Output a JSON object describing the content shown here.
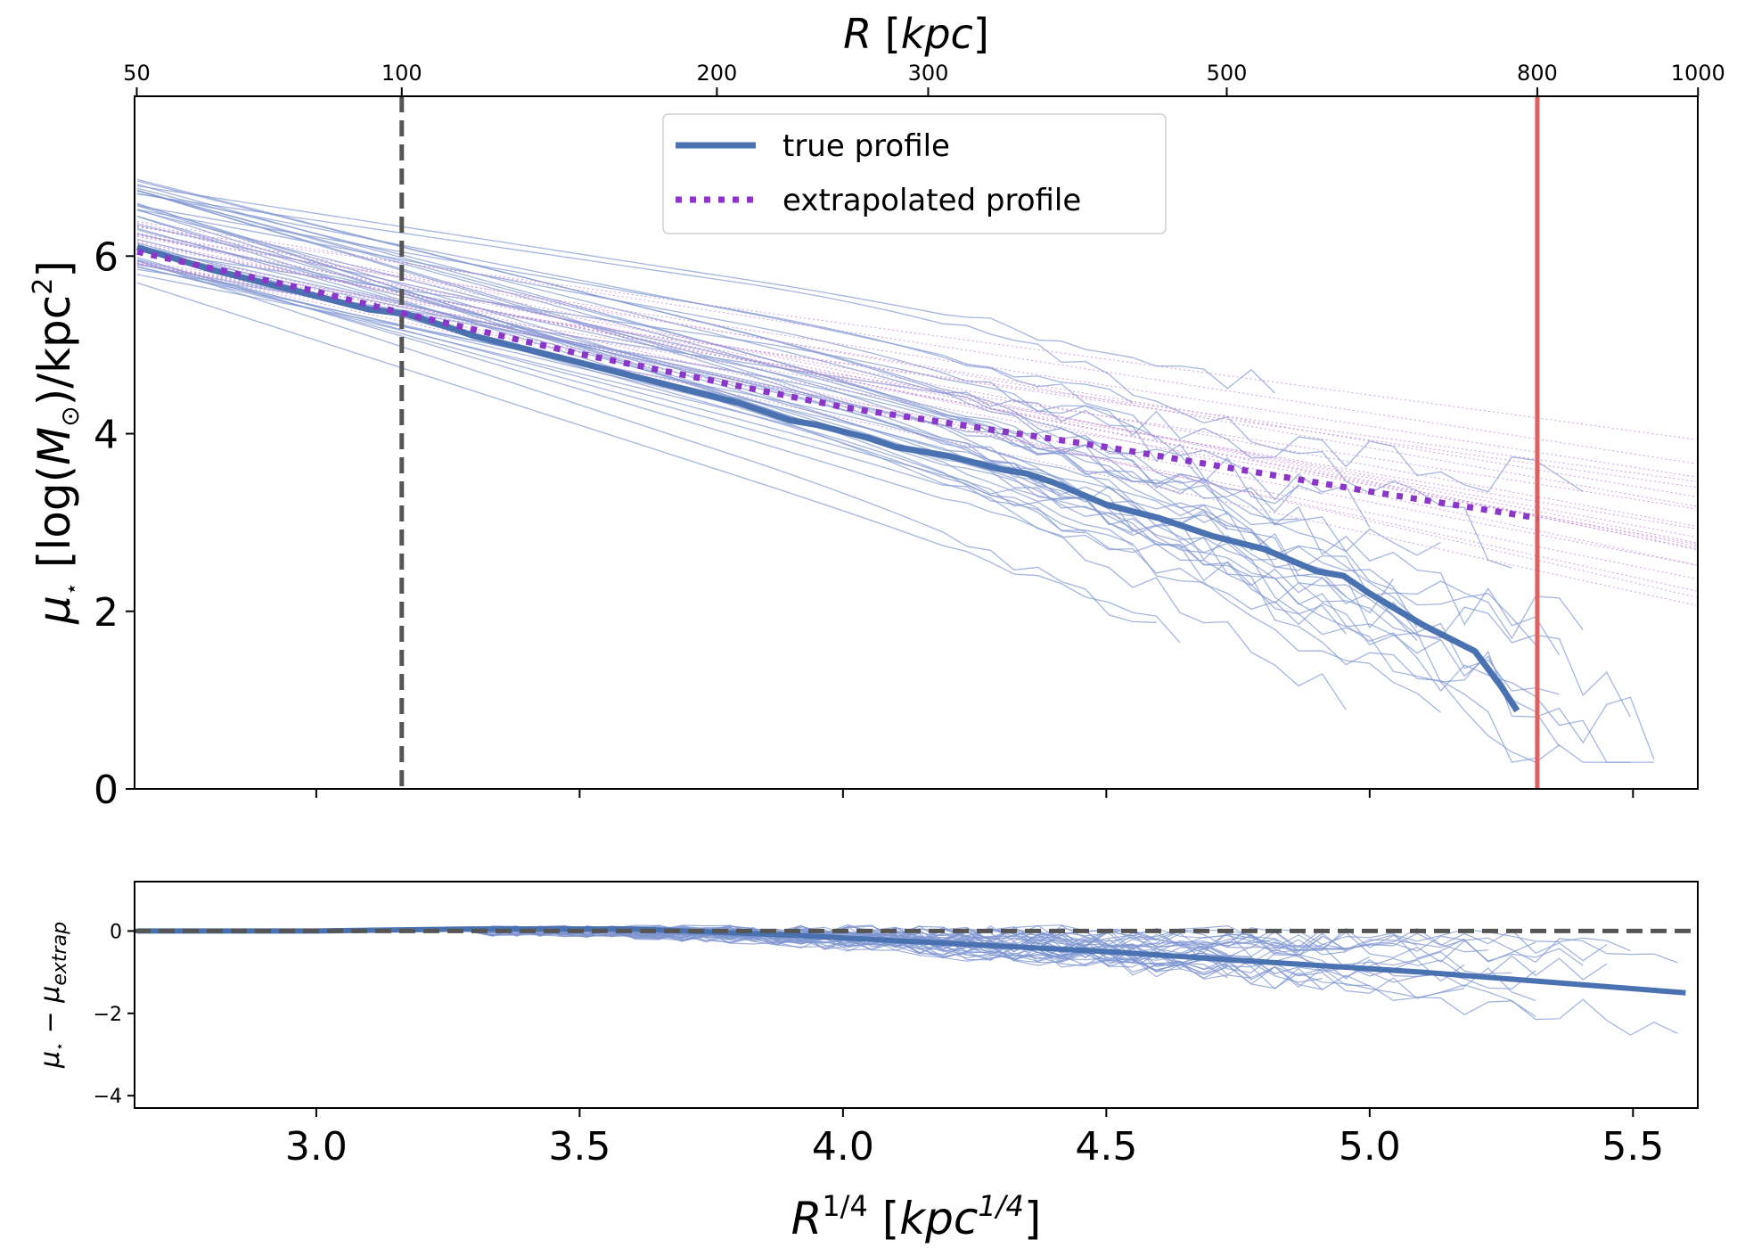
{
  "chart_data": [
    {
      "panel": "main",
      "type": "line",
      "xlabel": "R^{1/4} [kpc^{1/4}]",
      "xlabel_parts": {
        "base": "R",
        "exp": "1/4",
        "open": " [",
        "unit": "kpc",
        "unit_exp": "1/4",
        "close": "]"
      },
      "top_xlabel": "R [kpc]",
      "top_xlabel_parts": {
        "sym": "R",
        "rest": " [",
        "unit": "kpc",
        "close": "]"
      },
      "ylabel": "μ⋆ [log(M⊙)/kpc²]",
      "ylabel_parts": {
        "mu": "μ",
        "star": "⋆",
        "mid": " [log(",
        "M": "M",
        "sun": "⊙",
        "mid2": ")/kpc",
        "sq": "2",
        "close": "]"
      },
      "xlim": [
        2.655,
        5.623
      ],
      "ylim": [
        0,
        7.8
      ],
      "x_ticks": [
        "3.0",
        "3.5",
        "4.0",
        "4.5",
        "5.0",
        "5.5"
      ],
      "x_tick_values": [
        3.0,
        3.5,
        4.0,
        4.5,
        5.0,
        5.5
      ],
      "y_ticks": [
        "0",
        "2",
        "4",
        "6"
      ],
      "y_tick_values": [
        0,
        2,
        4,
        6
      ],
      "top_ticks": [
        "50",
        "100",
        "200",
        "300",
        "500",
        "800",
        "1000"
      ],
      "top_tick_values_kpc": [
        50,
        100,
        200,
        300,
        500,
        800,
        1000
      ],
      "vlines": [
        {
          "x_kpc": 100,
          "style": "dashed",
          "color": "#555555"
        },
        {
          "x_kpc": 800,
          "style": "solid",
          "color": "#e06060"
        }
      ],
      "legend": {
        "position": "upper center",
        "entries": [
          "true profile",
          "extrapolated profile"
        ]
      },
      "grid": false,
      "series": [
        {
          "name": "true profile",
          "color": "#4a72b0",
          "style": "solid",
          "x": [
            2.66,
            2.8,
            2.9,
            3.0,
            3.1,
            3.17,
            3.25,
            3.3,
            3.4,
            3.5,
            3.6,
            3.7,
            3.8,
            3.9,
            3.95,
            4.05,
            4.1,
            4.2,
            4.3,
            4.35,
            4.4,
            4.5,
            4.6,
            4.7,
            4.8,
            4.9,
            4.95,
            5.0,
            5.1,
            5.2,
            5.25,
            5.28
          ],
          "y": [
            6.1,
            5.85,
            5.7,
            5.55,
            5.4,
            5.35,
            5.2,
            5.1,
            4.95,
            4.8,
            4.65,
            4.5,
            4.35,
            4.15,
            4.1,
            3.95,
            3.85,
            3.75,
            3.6,
            3.55,
            3.45,
            3.2,
            3.05,
            2.85,
            2.7,
            2.45,
            2.4,
            2.2,
            1.85,
            1.55,
            1.15,
            0.88
          ]
        },
        {
          "name": "extrapolated profile",
          "color": "#8a36c8",
          "style": "dotted",
          "x": [
            2.66,
            3.0,
            3.17,
            3.5,
            4.0,
            4.5,
            5.0,
            5.32
          ],
          "y": [
            6.05,
            5.6,
            5.35,
            4.9,
            4.3,
            3.85,
            3.35,
            3.05
          ]
        }
      ]
    },
    {
      "panel": "residual",
      "type": "line",
      "ylabel": "μ⋆ − μextrap",
      "ylabel_parts": {
        "mu": "μ",
        "star": "⋆",
        "minus": " − ",
        "mu2": "μ",
        "sub": "extrap"
      },
      "xlim": [
        2.655,
        5.623
      ],
      "ylim": [
        -4.3,
        1.2
      ],
      "y_ticks": [
        "0",
        "−2",
        "−4"
      ],
      "y_tick_values": [
        0,
        -2,
        -4
      ],
      "hlines": [
        {
          "y": 0,
          "style": "dashed",
          "color": "#555555"
        }
      ],
      "grid": false,
      "series": [
        {
          "color": "#4a72b0",
          "style": "solid",
          "x": [
            2.66,
            3.0,
            3.3,
            3.6,
            3.9,
            4.2,
            4.5,
            4.8,
            5.1,
            5.4,
            5.6
          ],
          "y": [
            0,
            0,
            0.05,
            0.05,
            -0.1,
            -0.3,
            -0.5,
            -0.75,
            -1.0,
            -1.3,
            -1.5
          ]
        }
      ]
    }
  ]
}
